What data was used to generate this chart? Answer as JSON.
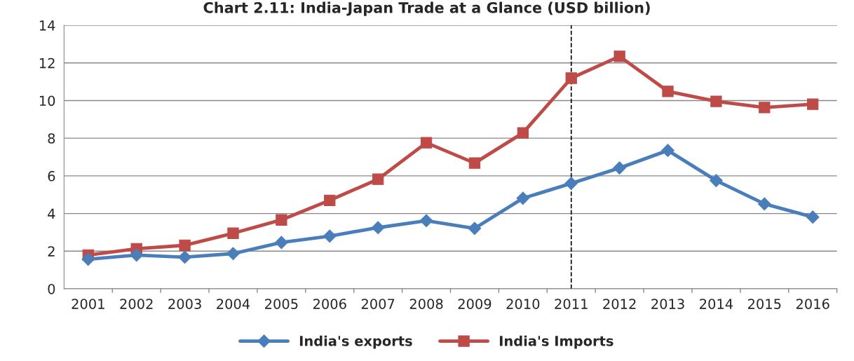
{
  "chart_data": {
    "type": "line",
    "title": "Chart 2.11: India-Japan Trade at a Glance (USD billion)",
    "categories": [
      "2001",
      "2002",
      "2003",
      "2004",
      "2005",
      "2006",
      "2007",
      "2008",
      "2009",
      "2010",
      "2011",
      "2012",
      "2013",
      "2014",
      "2015",
      "2016"
    ],
    "series": [
      {
        "name": "India's exports",
        "color": "#4a7ebb",
        "marker": "diamond",
        "values": [
          1.57,
          1.79,
          1.68,
          1.87,
          2.46,
          2.8,
          3.25,
          3.62,
          3.21,
          4.81,
          5.6,
          6.42,
          7.35,
          5.75,
          4.51,
          3.81
        ]
      },
      {
        "name": "India's Imports",
        "color": "#be4b48",
        "marker": "square",
        "values": [
          1.79,
          2.13,
          2.31,
          2.95,
          3.66,
          4.7,
          5.82,
          7.76,
          6.68,
          8.28,
          11.19,
          12.35,
          10.49,
          9.96,
          9.63,
          9.81
        ]
      }
    ],
    "ylim": [
      0,
      14
    ],
    "yticks": [
      0,
      2,
      4,
      6,
      8,
      10,
      12,
      14
    ],
    "grid": "y",
    "legend": "bottom",
    "ref_lines": [
      {
        "axis": "x",
        "value": "2011",
        "color": "#000000",
        "line_style": "dashed"
      }
    ]
  }
}
